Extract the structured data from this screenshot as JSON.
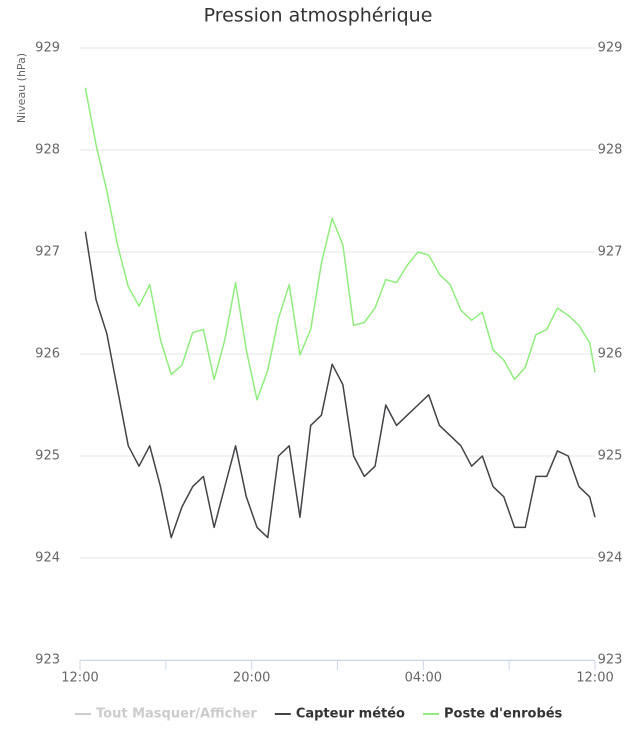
{
  "chart_data": {
    "type": "line",
    "title": "Pression atmosphérique",
    "y_label": "Niveau (hPa)",
    "xlim": [
      0,
      24
    ],
    "xticks": [
      {
        "value": 0,
        "label": "12:00"
      },
      {
        "value": 8,
        "label": "20:00"
      },
      {
        "value": 16,
        "label": "04:00"
      },
      {
        "value": 24,
        "label": "12:00"
      }
    ],
    "xminor_ticks": [
      4,
      12,
      20
    ],
    "ylim": [
      923,
      929
    ],
    "yticks": [
      923,
      924,
      925,
      926,
      927,
      928,
      929
    ],
    "y2lim": [
      923,
      929
    ],
    "y2ticks": [
      923,
      924,
      925,
      926,
      927,
      928,
      929
    ],
    "grid": true,
    "legend_toggle": {
      "label": "Tout Masquer/Afficher",
      "color": "#cccccc"
    },
    "x": [
      0.25,
      0.75,
      1.25,
      1.75,
      2.25,
      2.75,
      3.25,
      3.75,
      4.25,
      4.75,
      5.25,
      5.75,
      6.25,
      6.75,
      7.25,
      7.75,
      8.25,
      8.75,
      9.25,
      9.75,
      10.25,
      10.75,
      11.25,
      11.75,
      12.25,
      12.75,
      13.25,
      13.75,
      14.25,
      14.75,
      15.25,
      15.75,
      16.25,
      16.75,
      17.25,
      17.75,
      18.25,
      18.75,
      19.25,
      19.75,
      20.25,
      20.75,
      21.25,
      21.75,
      22.25,
      22.75,
      23.25,
      23.75,
      24
    ],
    "series": [
      {
        "name": "Capteur météo",
        "color": "#434348",
        "values": [
          927.2,
          926.53,
          926.2,
          925.65,
          925.1,
          924.9,
          925.1,
          924.7,
          924.2,
          924.5,
          924.7,
          924.8,
          924.3,
          924.7,
          925.1,
          924.6,
          924.3,
          924.2,
          925.0,
          925.1,
          924.4,
          925.3,
          925.4,
          925.9,
          925.7,
          925.0,
          924.8,
          924.9,
          925.5,
          925.3,
          925.4,
          925.5,
          925.6,
          925.3,
          925.2,
          925.1,
          924.9,
          925.0,
          924.7,
          924.6,
          924.3,
          924.3,
          924.8,
          924.8,
          925.05,
          925.0,
          924.7,
          924.6,
          924.4
        ]
      },
      {
        "name": "Poste d'enrobés",
        "color": "#90ed7d",
        "values": [
          928.61,
          928.05,
          927.6,
          927.07,
          926.66,
          926.47,
          926.68,
          926.14,
          925.8,
          925.89,
          926.21,
          926.24,
          925.75,
          926.14,
          926.7,
          926.04,
          925.55,
          925.84,
          926.35,
          926.68,
          925.99,
          926.24,
          926.89,
          927.33,
          927.07,
          926.28,
          926.31,
          926.45,
          926.73,
          926.7,
          926.87,
          927.0,
          926.97,
          926.78,
          926.68,
          926.43,
          926.33,
          926.41,
          926.04,
          925.94,
          925.75,
          925.87,
          926.19,
          926.24,
          926.45,
          926.38,
          926.28,
          926.11,
          925.82
        ]
      }
    ]
  }
}
